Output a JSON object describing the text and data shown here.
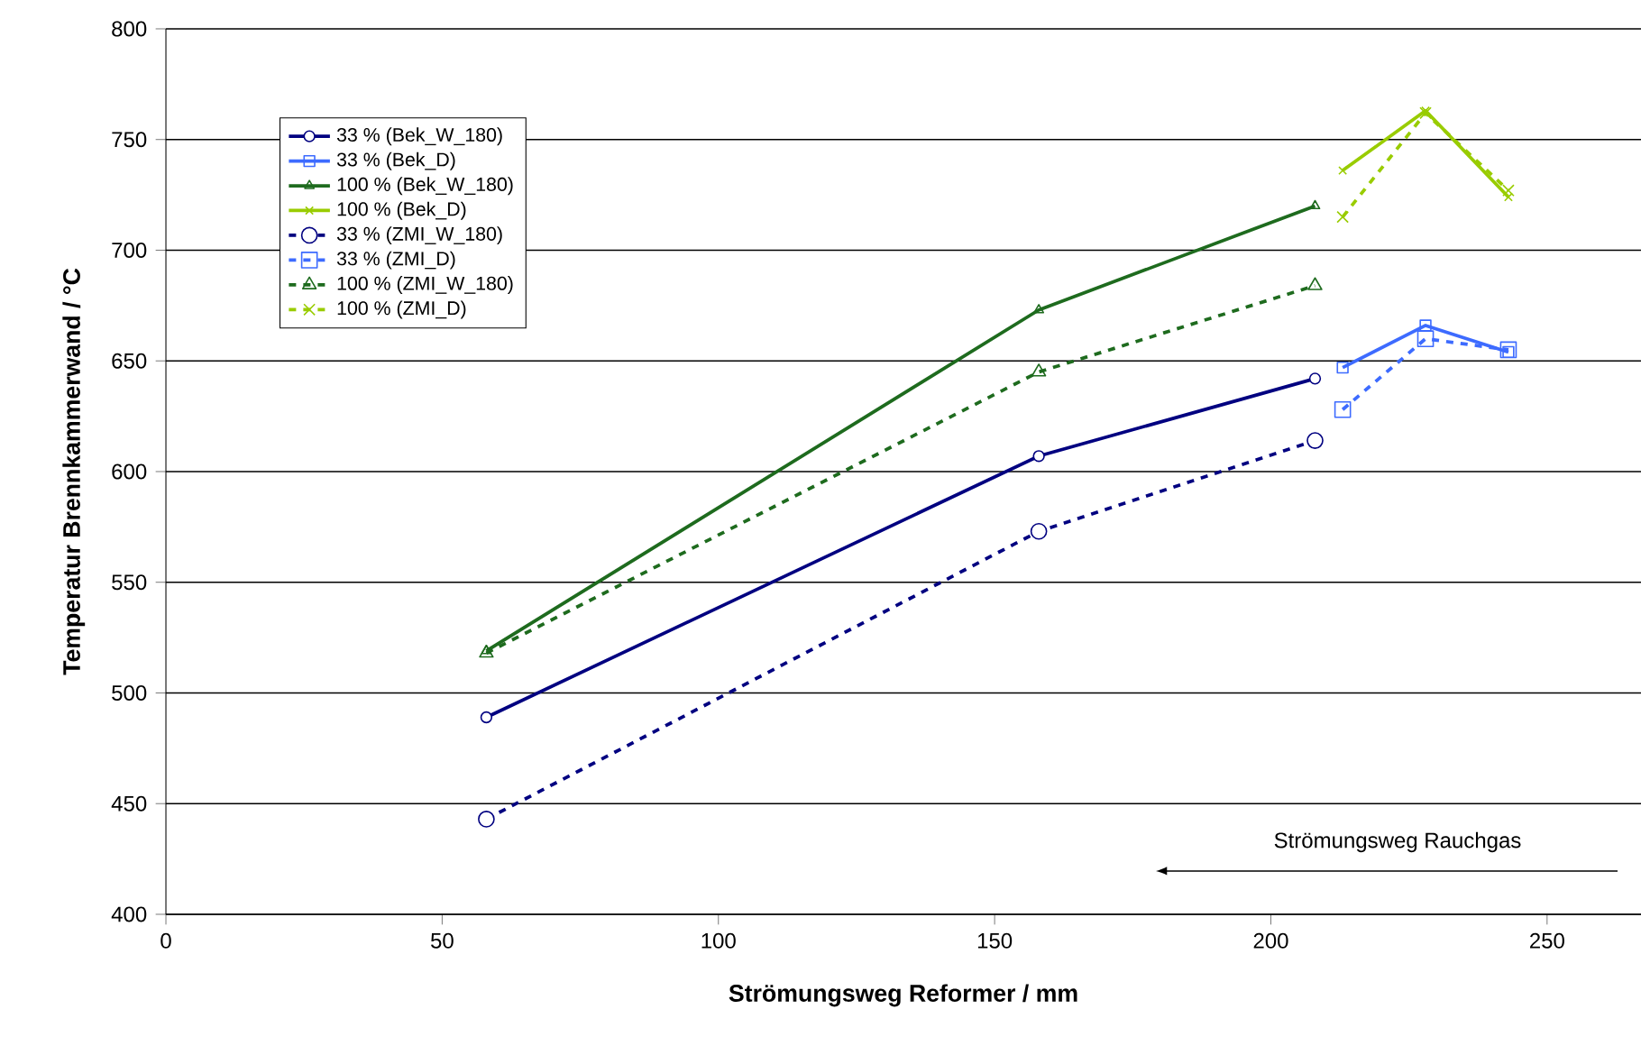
{
  "chart_data": {
    "type": "line",
    "xlabel": "Strömungsweg Reformer / mm",
    "ylabel": "Temperatur Brennkammerwand / °C",
    "xlim": [
      0,
      267
    ],
    "xticks": [
      0,
      50,
      100,
      150,
      200,
      250
    ],
    "ylim": [
      400,
      800
    ],
    "yticks": [
      400,
      450,
      500,
      550,
      600,
      650,
      700,
      750,
      800
    ],
    "grid": "y",
    "legend": "top left",
    "annotations": [
      "Strömungsweg Rauchgas"
    ],
    "series": [
      {
        "name": "33 % (Bek_W_180)",
        "color": "#000080",
        "marker": "circle",
        "line_style": "solid",
        "x": [
          58,
          158,
          208
        ],
        "values": [
          489,
          607,
          642
        ]
      },
      {
        "name": "33 % (Bek_D)",
        "color": "#3d6bff",
        "marker": "square",
        "line_style": "solid",
        "x": [
          213,
          228,
          243
        ],
        "values": [
          647,
          666,
          654
        ]
      },
      {
        "name": "100 % (Bek_W_180)",
        "color": "#1e6b1e",
        "marker": "triangle",
        "line_style": "solid",
        "x": [
          58,
          158,
          208
        ],
        "values": [
          519,
          673,
          720
        ]
      },
      {
        "name": "100 % (Bek_D)",
        "color": "#99cc00",
        "marker": "cross",
        "line_style": "solid",
        "x": [
          213,
          228,
          243
        ],
        "values": [
          736,
          763,
          724
        ]
      },
      {
        "name": "33 % (ZMI_W_180)",
        "color": "#000080",
        "marker": "circle",
        "line_style": "dashed",
        "x": [
          58,
          158,
          208
        ],
        "values": [
          443,
          573,
          614
        ]
      },
      {
        "name": "33 % (ZMI_D)",
        "color": "#3d6bff",
        "marker": "square",
        "line_style": "dashed",
        "x": [
          213,
          228,
          243
        ],
        "values": [
          628,
          660,
          655
        ]
      },
      {
        "name": "100 % (ZMI_W_180)",
        "color": "#1e6b1e",
        "marker": "triangle",
        "line_style": "dashed",
        "x": [
          58,
          158,
          208
        ],
        "values": [
          518,
          645,
          684
        ]
      },
      {
        "name": "100 % (ZMI_D)",
        "color": "#99cc00",
        "marker": "cross",
        "line_style": "dashed",
        "x": [
          213,
          228,
          243
        ],
        "values": [
          715,
          762,
          727
        ]
      }
    ]
  }
}
